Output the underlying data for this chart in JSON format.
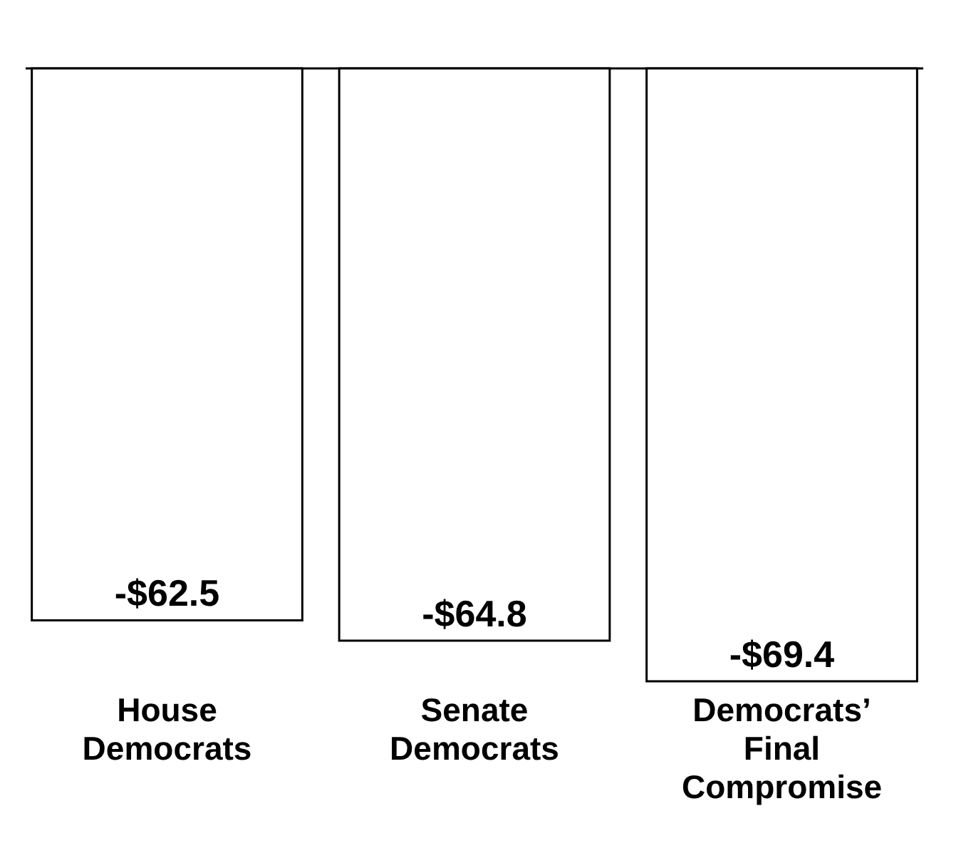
{
  "chart_data": {
    "type": "bar",
    "categories": [
      "House Democrats",
      "Senate Democrats",
      "Democrats’ Final Compromise"
    ],
    "values": [
      -62.5,
      -64.8,
      -69.4
    ],
    "value_labels": [
      "-$62.5",
      "-$64.8",
      "-$69.4"
    ],
    "color": "#ffffff",
    "relative": false
  }
}
